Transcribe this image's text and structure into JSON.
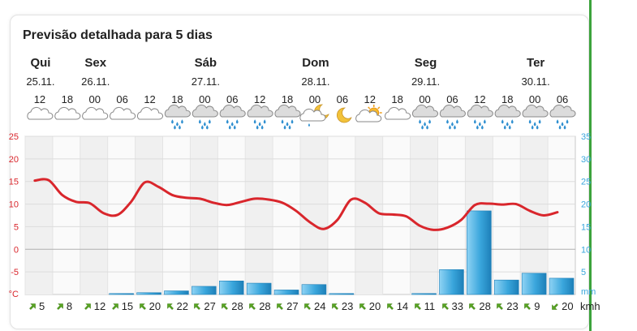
{
  "title": "Previsão detalhada para 5 dias",
  "days": [
    {
      "name": "Qui",
      "date": "25.11.",
      "slot": 0
    },
    {
      "name": "Sex",
      "date": "26.11.",
      "slot": 2
    },
    {
      "name": "Sáb",
      "date": "27.11.",
      "slot": 6
    },
    {
      "name": "Dom",
      "date": "28.11.",
      "slot": 10
    },
    {
      "name": "Seg",
      "date": "29.11.",
      "slot": 14
    },
    {
      "name": "Ter",
      "date": "30.11.",
      "slot": 18
    }
  ],
  "hours": [
    "12",
    "18",
    "00",
    "06",
    "12",
    "18",
    "00",
    "06",
    "12",
    "18",
    "00",
    "06",
    "12",
    "18",
    "00",
    "06",
    "12",
    "18",
    "00",
    "06"
  ],
  "weather_icons": [
    "cloudy-icon",
    "cloudy-icon",
    "cloudy-icon",
    "cloudy-icon",
    "cloudy-icon",
    "rain-cloud-icon",
    "rain-cloud-icon",
    "rain-cloud-icon",
    "rain-cloud-icon",
    "rain-cloud-icon",
    "moon-cloud-icon",
    "moon-icon",
    "sun-cloud-icon",
    "cloudy-icon",
    "rain-cloud-icon",
    "rain-cloud-icon",
    "rain-cloud-icon",
    "rain-cloud-icon",
    "rain-cloud-icon",
    "rain-cloud-icon"
  ],
  "wind": {
    "unit": "kmh",
    "speeds": [
      "5",
      "8",
      "12",
      "15",
      "20",
      "22",
      "27",
      "28",
      "28",
      "27",
      "24",
      "23",
      "20",
      "14",
      "11",
      "33",
      "28",
      "23",
      "9",
      "20"
    ],
    "directions": [
      "ne",
      "ne",
      "ne",
      "ne",
      "nw",
      "nw",
      "nw",
      "nw",
      "nw",
      "nw",
      "nw",
      "nw",
      "nw",
      "nw",
      "nw",
      "nw",
      "nw",
      "nw",
      "nw",
      "sw"
    ]
  },
  "chart_data": {
    "type": "line+bar",
    "temperature": {
      "unit": "°C",
      "ylim": [
        -10,
        25
      ],
      "ticks": [
        "25",
        "20",
        "15",
        "10",
        "5",
        "0",
        "-5"
      ],
      "color": "#d9262c",
      "x": [
        0,
        0.5,
        1,
        1.5,
        2,
        2.5,
        3,
        3.5,
        4,
        4.5,
        5,
        5.5,
        6,
        6.5,
        7,
        7.5,
        8,
        8.5,
        9,
        9.5,
        10,
        10.5,
        11,
        11.5,
        12,
        12.5,
        13,
        13.5,
        14,
        14.5,
        15,
        15.5,
        16,
        16.5,
        17,
        17.5,
        18,
        18.5,
        19
      ],
      "values": [
        15.2,
        15.3,
        12,
        10.5,
        10.2,
        8,
        7.6,
        10.5,
        14.8,
        13.8,
        12,
        11.4,
        11.2,
        10.3,
        9.8,
        10.5,
        11.2,
        11,
        10.3,
        8.5,
        6,
        4.5,
        6.5,
        11,
        10.3,
        8,
        7.7,
        7.3,
        5.2,
        4.3,
        4.8,
        6.5,
        9.8,
        10.1,
        9.9,
        10,
        8.5,
        7.5,
        8.2
      ]
    },
    "precipitation": {
      "unit": "mm",
      "ylim": [
        0,
        35
      ],
      "ticks": [
        "35",
        "30",
        "25",
        "20",
        "15",
        "10",
        "5"
      ],
      "color": "#3aa6dc",
      "values": [
        0,
        0,
        0,
        0.2,
        0.4,
        0.8,
        1.8,
        3,
        2.5,
        1,
        2.2,
        0.2,
        0,
        0,
        0.2,
        5.5,
        18.5,
        3.2,
        4.7,
        3.6
      ]
    },
    "grid": true
  },
  "colors": {
    "accent_green": "#3ca33c",
    "axis_left": "#d9262c",
    "axis_right": "#3aa6dc"
  }
}
